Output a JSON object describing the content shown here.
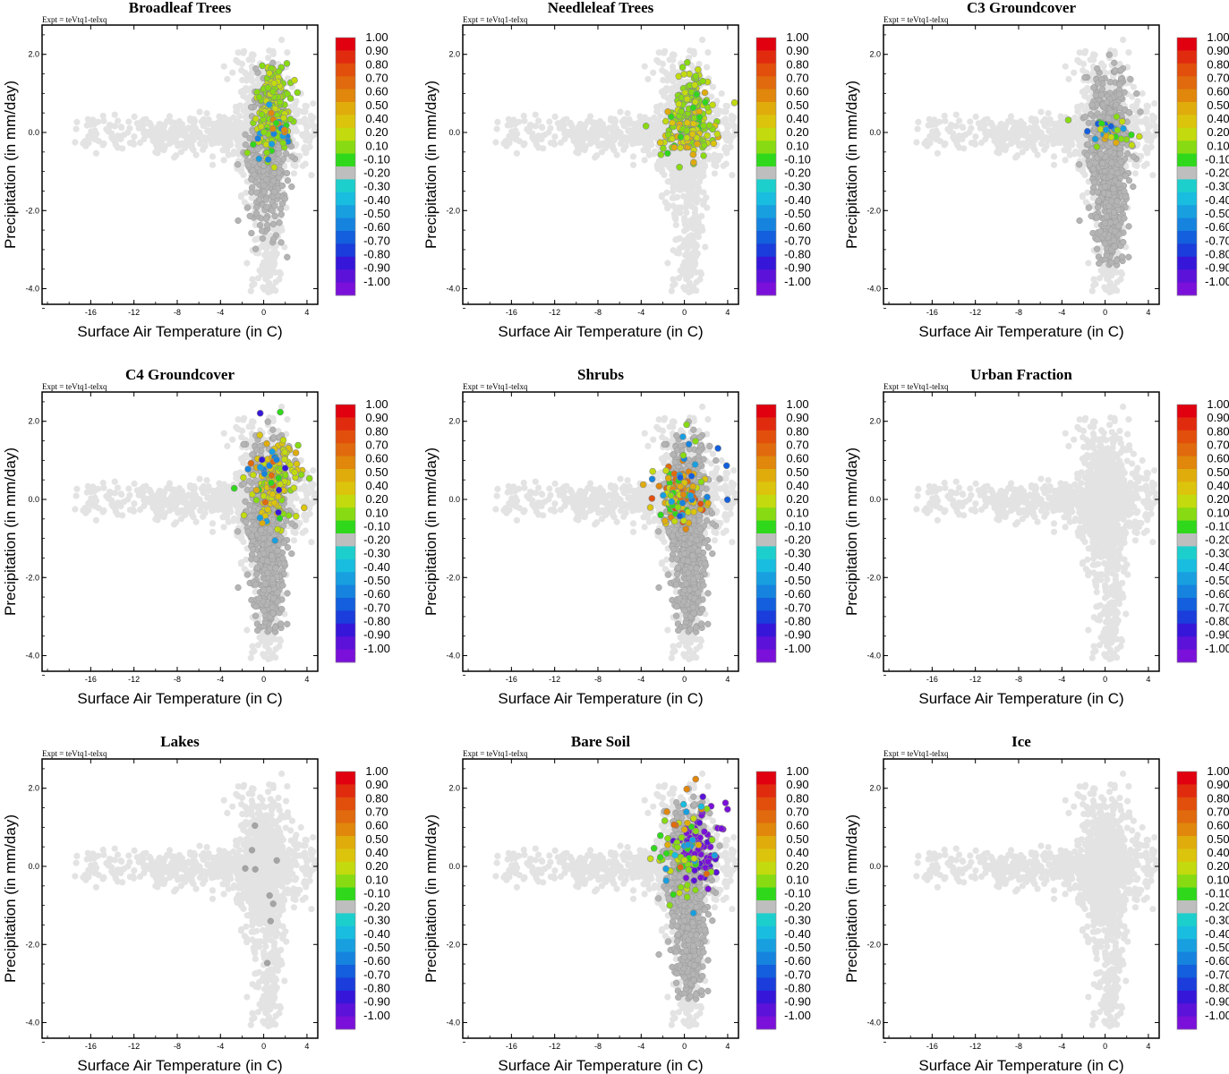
{
  "figure": {
    "experiment_label": "Expt = teVtq1-teIxq"
  },
  "colors": {
    "background_points": "#e3e3e3",
    "neutral_points": "#b4b4b4",
    "neutral_points_dark": "#a4a4a4",
    "frame": "#000000"
  },
  "colorbar": {
    "labels": [
      "1.00",
      "0.90",
      "0.80",
      "0.70",
      "0.60",
      "0.50",
      "0.40",
      "0.20",
      "0.10",
      "-0.10",
      "-0.20",
      "-0.30",
      "-0.40",
      "-0.50",
      "-0.60",
      "-0.70",
      "-0.80",
      "-0.90",
      "-1.00"
    ],
    "colors": [
      "#e0000f",
      "#e02b0f",
      "#e24e0c",
      "#e06a0d",
      "#e0870c",
      "#e0ac0c",
      "#dcc40c",
      "#c3db0e",
      "#88db12",
      "#30d81c",
      "#bebebe",
      "#1dcfcc",
      "#19bde0",
      "#189fe0",
      "#1683df",
      "#135fdd",
      "#1b3ddb",
      "#3616d9",
      "#5c12d9",
      "#7a10d9"
    ]
  },
  "chart_data": [
    {
      "type": "scatter",
      "title": "Broadleaf Trees",
      "xlabel": "Surface Air Temperature (in C)",
      "ylabel": "Precipitation (in mm/day)",
      "xlim": [
        -20.5,
        5.0
      ],
      "ylim": [
        -4.4,
        2.75
      ],
      "xticks": [
        -16,
        -12,
        -8,
        -4,
        0,
        4
      ],
      "yticks": [
        2.0,
        0.0,
        -2.0,
        -4.0
      ],
      "colorbar_range": [
        -1.0,
        1.0
      ],
      "gray": "few",
      "colored": [
        {
          "n": 170,
          "cx": 0.9,
          "cy": 0.7,
          "sx": 0.8,
          "sy": 0.55,
          "values": [
            0.3,
            0.4,
            0.4,
            0.2
          ]
        },
        {
          "n": 45,
          "cx": 0.9,
          "cy": 0.0,
          "sx": 0.9,
          "sy": 0.3,
          "values": [
            0.3,
            0.4,
            0.2,
            0.1,
            -0.3,
            -0.4,
            0.7
          ]
        }
      ]
    },
    {
      "type": "scatter",
      "title": "Needleleaf Trees",
      "xlabel": "Surface Air Temperature (in C)",
      "ylabel": "Precipitation (in mm/day)",
      "xlim": [
        -20.5,
        5.0
      ],
      "ylim": [
        -4.4,
        2.75
      ],
      "xticks": [
        -16,
        -12,
        -8,
        -4,
        0,
        4
      ],
      "yticks": [
        2.0,
        0.0,
        -2.0,
        -4.0
      ],
      "colorbar_range": [
        -1.0,
        1.0
      ],
      "gray": "none",
      "colored": [
        {
          "n": 110,
          "cx": 0.8,
          "cy": 0.7,
          "sx": 0.85,
          "sy": 0.5,
          "values": [
            0.3,
            0.4,
            0.2
          ]
        },
        {
          "n": 110,
          "cx": 0.3,
          "cy": 0.0,
          "sx": 1.2,
          "sy": 0.35,
          "values": [
            0.4,
            0.5,
            0.6,
            0.3,
            0.1,
            0.2
          ]
        }
      ]
    },
    {
      "type": "scatter",
      "title": "C3 Groundcover",
      "xlabel": "Surface Air Temperature (in C)",
      "ylabel": "Precipitation (in mm/day)",
      "xlim": [
        -20.5,
        5.0
      ],
      "ylim": [
        -4.4,
        2.75
      ],
      "xticks": [
        -16,
        -12,
        -8,
        -4,
        0,
        4
      ],
      "yticks": [
        2.0,
        0.0,
        -2.0,
        -4.0
      ],
      "colorbar_range": [
        -1.0,
        1.0
      ],
      "gray": "many",
      "colored": [
        {
          "n": 35,
          "cx": 0.5,
          "cy": 0.0,
          "sx": 1.8,
          "sy": 0.2,
          "values": [
            0.1,
            0.2,
            0.3,
            0.4,
            -0.3,
            -0.5,
            0.6
          ]
        }
      ]
    },
    {
      "type": "scatter",
      "title": "C4 Groundcover",
      "xlabel": "Surface Air Temperature (in C)",
      "ylabel": "Precipitation (in mm/day)",
      "xlim": [
        -20.5,
        5.0
      ],
      "ylim": [
        -4.4,
        2.75
      ],
      "xticks": [
        -16,
        -12,
        -8,
        -4,
        0,
        4
      ],
      "yticks": [
        2.0,
        0.0,
        -2.0,
        -4.0
      ],
      "colorbar_range": [
        -1.0,
        1.0
      ],
      "gray": "many",
      "colored": [
        {
          "n": 130,
          "cx": 1.2,
          "cy": 0.45,
          "sx": 1.0,
          "sy": 0.5,
          "values": [
            0.4,
            0.5,
            0.4,
            0.3,
            0.5
          ]
        },
        {
          "n": 35,
          "cx": 0.3,
          "cy": 0.6,
          "sx": 1.2,
          "sy": 0.8,
          "values": [
            -0.3,
            -0.4,
            0.8,
            0.6,
            0.1,
            -0.7
          ]
        }
      ]
    },
    {
      "type": "scatter",
      "title": "Shrubs",
      "xlabel": "Surface Air Temperature (in C)",
      "ylabel": "Precipitation (in mm/day)",
      "xlim": [
        -20.5,
        5.0
      ],
      "ylim": [
        -4.4,
        2.75
      ],
      "xticks": [
        -16,
        -12,
        -8,
        -4,
        0,
        4
      ],
      "yticks": [
        2.0,
        0.0,
        -2.0,
        -4.0
      ],
      "colorbar_range": [
        -1.0,
        1.0
      ],
      "gray": "many",
      "colored": [
        {
          "n": 120,
          "cx": -0.5,
          "cy": 0.1,
          "sx": 1.2,
          "sy": 0.35,
          "values": [
            0.8,
            0.7,
            0.9,
            0.6,
            0.5,
            0.4,
            0.1
          ]
        },
        {
          "n": 25,
          "cx": 0.3,
          "cy": 0.5,
          "sx": 1.5,
          "sy": 0.7,
          "values": [
            -0.3,
            -0.4,
            -0.5,
            0.2
          ]
        }
      ]
    },
    {
      "type": "scatter",
      "title": "Urban Fraction",
      "xlabel": "Surface Air Temperature (in C)",
      "ylabel": "Precipitation (in mm/day)",
      "xlim": [
        -20.5,
        5.0
      ],
      "ylim": [
        -4.4,
        2.75
      ],
      "xticks": [
        -16,
        -12,
        -8,
        -4,
        0,
        4
      ],
      "yticks": [
        2.0,
        0.0,
        -2.0,
        -4.0
      ],
      "colorbar_range": [
        -1.0,
        1.0
      ],
      "gray": "none",
      "colored": []
    },
    {
      "type": "scatter",
      "title": "Lakes",
      "xlabel": "Surface Air Temperature (in C)",
      "ylabel": "Precipitation (in mm/day)",
      "xlim": [
        -20.5,
        5.0
      ],
      "ylim": [
        -4.4,
        2.75
      ],
      "xticks": [
        -16,
        -12,
        -8,
        -4,
        0,
        4
      ],
      "yticks": [
        2.0,
        0.0,
        -2.0,
        -4.0
      ],
      "colorbar_range": [
        -1.0,
        1.0
      ],
      "gray": "few_dark",
      "colored": []
    },
    {
      "type": "scatter",
      "title": "Bare Soil",
      "xlabel": "Surface Air Temperature (in C)",
      "ylabel": "Precipitation (in mm/day)",
      "xlim": [
        -20.5,
        5.0
      ],
      "ylim": [
        -4.4,
        2.75
      ],
      "xticks": [
        -16,
        -12,
        -8,
        -4,
        0,
        4
      ],
      "yticks": [
        2.0,
        0.0,
        -2.0,
        -4.0
      ],
      "colorbar_range": [
        -1.0,
        1.0
      ],
      "gray": "many",
      "colored": [
        {
          "n": 70,
          "cx": 1.5,
          "cy": 0.5,
          "sx": 1.2,
          "sy": 0.5,
          "values": [
            -0.9,
            -1.0,
            -0.8,
            -0.9
          ]
        },
        {
          "n": 60,
          "cx": -0.3,
          "cy": 0.2,
          "sx": 1.3,
          "sy": 0.45,
          "values": [
            0.2,
            0.1,
            -0.3,
            0.4,
            0.3
          ]
        },
        {
          "n": 15,
          "cx": 0.0,
          "cy": 0.9,
          "sx": 1.3,
          "sy": 0.7,
          "values": [
            0.6,
            0.7,
            0.8,
            -0.2
          ]
        }
      ]
    },
    {
      "type": "scatter",
      "title": "Ice",
      "xlabel": "Surface Air Temperature (in C)",
      "ylabel": "Precipitation (in mm/day)",
      "xlim": [
        -20.5,
        5.0
      ],
      "ylim": [
        -4.4,
        2.75
      ],
      "xticks": [
        -16,
        -12,
        -8,
        -4,
        0,
        4
      ],
      "yticks": [
        2.0,
        0.0,
        -2.0,
        -4.0
      ],
      "colorbar_range": [
        -1.0,
        1.0
      ],
      "gray": "none",
      "colored": []
    }
  ]
}
